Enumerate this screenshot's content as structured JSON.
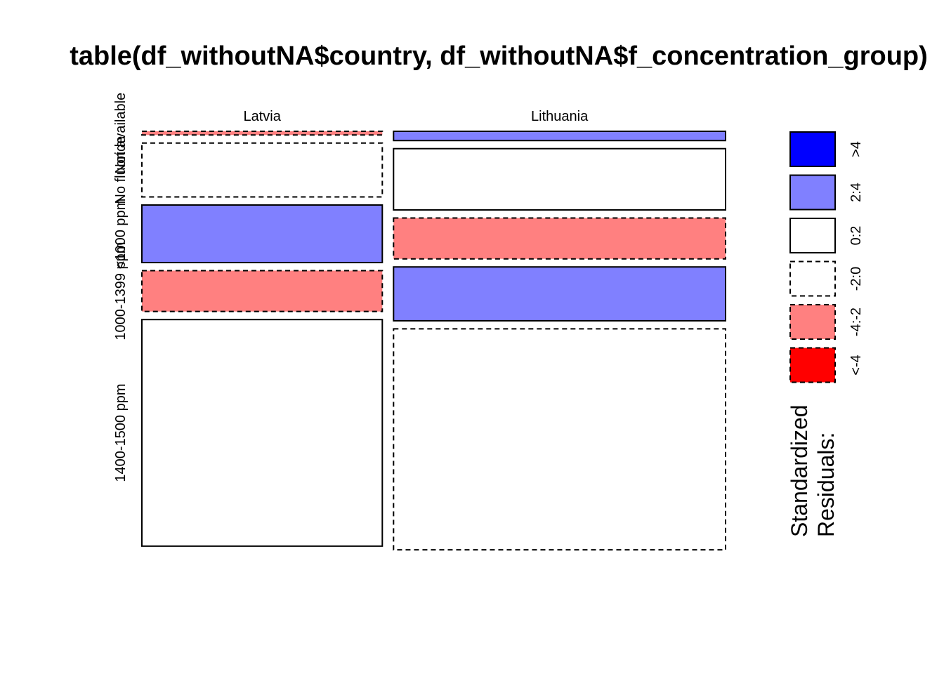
{
  "chart_data": {
    "type": "mosaic",
    "title": "table(df_withoutNA$country, df_withoutNA$f_concentration_group)",
    "columns": [
      "Latvia",
      "Lithuania"
    ],
    "rows": [
      "Not available",
      "No fluoride",
      "<1000 ppm",
      "1000-1399 ppm",
      "1400-1500 ppm"
    ],
    "cells": [
      {
        "column": "Latvia",
        "row": "Not available",
        "proportion": 0.01,
        "residual_class": "-4:-2"
      },
      {
        "column": "Latvia",
        "row": "No fluoride",
        "proportion": 0.145,
        "residual_class": "-2:0"
      },
      {
        "column": "Latvia",
        "row": "<1000 ppm",
        "proportion": 0.155,
        "residual_class": "2:4"
      },
      {
        "column": "Latvia",
        "row": "1000-1399 ppm",
        "proportion": 0.11,
        "residual_class": "-4:-2"
      },
      {
        "column": "Latvia",
        "row": "1400-1500 ppm",
        "proportion": 0.61,
        "residual_class": "0:2"
      },
      {
        "column": "Lithuania",
        "row": "Not available",
        "proportion": 0.025,
        "residual_class": "2:4"
      },
      {
        "column": "Lithuania",
        "row": "No fluoride",
        "proportion": 0.165,
        "residual_class": "0:2"
      },
      {
        "column": "Lithuania",
        "row": "<1000 ppm",
        "proportion": 0.11,
        "residual_class": "-4:-2"
      },
      {
        "column": "Lithuania",
        "row": "1000-1399 ppm",
        "proportion": 0.145,
        "residual_class": "2:4"
      },
      {
        "column": "Lithuania",
        "row": "1400-1500 ppm",
        "proportion": 0.595,
        "residual_class": "-2:0"
      }
    ],
    "column_shares": [
      0.42,
      0.58
    ],
    "legend": {
      "title_lines": [
        "Standardized",
        "Residuals:"
      ],
      "items": [
        {
          "label": ">4",
          "color": "#0000ff",
          "dashed": false
        },
        {
          "label": "2:4",
          "color": "#8080ff",
          "dashed": false
        },
        {
          "label": "0:2",
          "color": "#ffffff",
          "dashed": false
        },
        {
          "label": "-2:0",
          "color": "#ffffff",
          "dashed": true
        },
        {
          "label": "-4:-2",
          "color": "#ff8080",
          "dashed": true
        },
        {
          "label": "<-4",
          "color": "#ff0000",
          "dashed": true
        }
      ]
    }
  }
}
